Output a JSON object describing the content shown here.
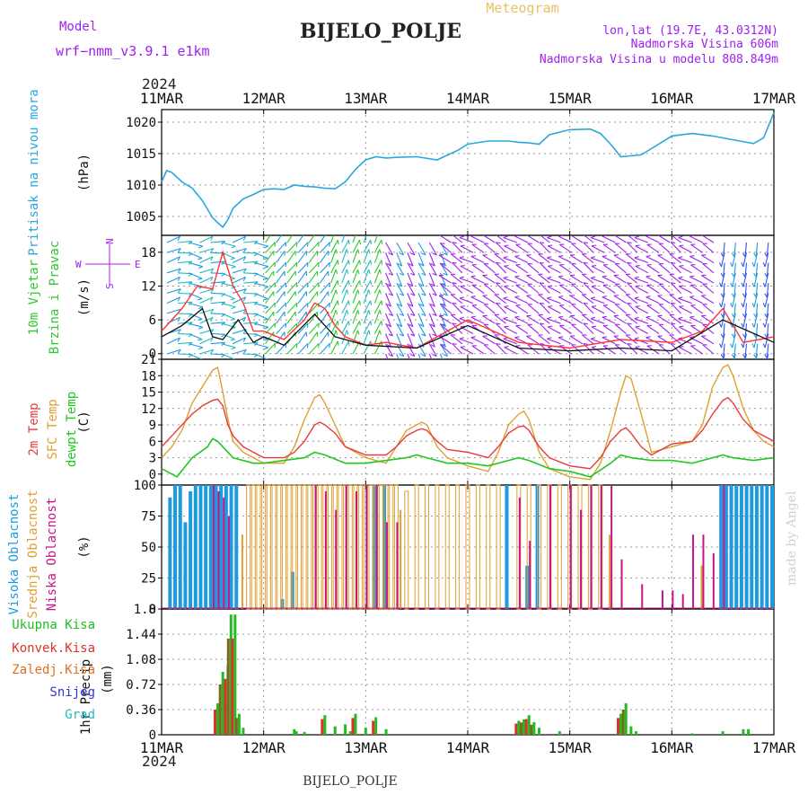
{
  "header": {
    "model_label": "Model",
    "model_name": "wrf−nmm_v3.9.1  e1km",
    "title": "BIJELO_POLJE",
    "subtitle": "Meteogram",
    "lonlat": "lon,lat (19.7E, 43.0312N)",
    "elevation": "Nadmorska Visina 606m",
    "model_elevation": "Nadmorska Visina u modelu 808.849m",
    "year_top": "2024",
    "year_bottom": "2024",
    "footer_station": "BIJELO_POLJE",
    "credit": "made by Angel"
  },
  "colors": {
    "pressure": "#29a8e0",
    "wind_green": "#2ec82e",
    "wind_purple": "#a020f0",
    "temp2m": "#e83c3c",
    "sfc": "#e0a030",
    "dew": "#20c820",
    "high_cloud": "#1e9be0",
    "mid_cloud": "#e0a030",
    "low_cloud": "#c71585",
    "precip_total": "#22bb22",
    "precip_conv": "#e0302c",
    "precip_frozen": "#e07020",
    "snow": "#3333dd",
    "grad": "#22bbbb",
    "compass": "#a020f0"
  },
  "chart_data": [
    {
      "type": "line",
      "id": "pressure",
      "ylabel_lines": [
        "Pritisak na nivou mora"
      ],
      "unit": "(hPa)",
      "ylim": [
        1002,
        1022
      ],
      "yticks": [
        1005,
        1010,
        1015,
        1020
      ],
      "xticks": [
        "11MAR",
        "12MAR",
        "13MAR",
        "14MAR",
        "15MAR",
        "16MAR",
        "17MAR"
      ],
      "series": [
        {
          "x": [
            0,
            0.05,
            0.1,
            0.2,
            0.3,
            0.4,
            0.5,
            0.55,
            0.6,
            0.65,
            0.7,
            0.8,
            0.9,
            1.0,
            1.1,
            1.2,
            1.3,
            1.4,
            1.5,
            1.6,
            1.7,
            1.8,
            1.9,
            2.0,
            2.1,
            2.2,
            2.3,
            2.5,
            2.7,
            2.9,
            3.0,
            3.2,
            3.4,
            3.5,
            3.6,
            3.7,
            3.8,
            4.0,
            4.2,
            4.3,
            4.4,
            4.5,
            4.7,
            4.9,
            5.0,
            5.2,
            5.4,
            5.6,
            5.8,
            5.9,
            6.0
          ],
          "values": [
            1010.5,
            1012.3,
            1012.0,
            1010.5,
            1009.5,
            1007.5,
            1004.8,
            1004.0,
            1003.3,
            1004.5,
            1006.3,
            1007.8,
            1008.5,
            1009.3,
            1009.4,
            1009.3,
            1010.0,
            1009.8,
            1009.7,
            1009.5,
            1009.4,
            1010.5,
            1012.5,
            1014.0,
            1014.5,
            1014.3,
            1014.4,
            1014.5,
            1014.0,
            1015.5,
            1016.5,
            1017.0,
            1017.0,
            1016.8,
            1016.7,
            1016.5,
            1018.0,
            1018.8,
            1018.9,
            1018.2,
            1016.5,
            1014.5,
            1014.8,
            1016.8,
            1017.8,
            1018.2,
            1017.8,
            1017.2,
            1016.6,
            1017.5,
            1021.5
          ]
        }
      ]
    },
    {
      "type": "line",
      "id": "wind",
      "ylabel_lines": [
        "10m Vjetar",
        "Brzina i Pravac"
      ],
      "unit": "(m/s)",
      "ylim": [
        -1,
        21
      ],
      "yticks": [
        0,
        6,
        12,
        18
      ],
      "compass": {
        "n": "N",
        "s": "S",
        "w": "W",
        "e": "E"
      },
      "series": [
        {
          "name": "speed",
          "x": [
            0,
            0.2,
            0.35,
            0.5,
            0.6,
            0.7,
            0.8,
            0.9,
            1.0,
            1.2,
            1.4,
            1.5,
            1.6,
            1.7,
            1.8,
            2.0,
            2.2,
            2.5,
            3.0,
            3.5,
            4.0,
            4.5,
            5.0,
            5.3,
            5.5,
            5.7,
            6.0
          ],
          "values": [
            4.0,
            8.0,
            12.0,
            11.5,
            18.0,
            12.0,
            9.0,
            4.0,
            4.0,
            2.5,
            6.0,
            9.0,
            8.0,
            5.0,
            3.0,
            1.5,
            2.0,
            1.0,
            6.0,
            2.0,
            1.0,
            2.5,
            2.0,
            4.0,
            8.0,
            2.0,
            3.0
          ]
        },
        {
          "name": "gust",
          "x": [
            0,
            0.2,
            0.4,
            0.5,
            0.6,
            0.75,
            0.9,
            1.0,
            1.2,
            1.5,
            1.7,
            2.0,
            2.5,
            3.0,
            3.5,
            4.0,
            4.5,
            5.0,
            5.5,
            6.0
          ],
          "values": [
            3.0,
            5.0,
            8.0,
            3.0,
            2.5,
            6.0,
            2.0,
            3.0,
            1.5,
            7.0,
            3.0,
            1.5,
            1.0,
            5.0,
            1.0,
            0.5,
            1.0,
            0.5,
            6.0,
            2.0
          ]
        }
      ]
    },
    {
      "type": "line",
      "id": "temperature",
      "ylabel_lines": [
        "2m Temp",
        "SFC Temp",
        "dewpt Temp"
      ],
      "unit": "(C)",
      "ylim": [
        -2,
        21
      ],
      "yticks": [
        0,
        3,
        6,
        9,
        12,
        15,
        18,
        21
      ],
      "series": [
        {
          "name": "2m Temp",
          "x": [
            0,
            0.1,
            0.2,
            0.3,
            0.4,
            0.5,
            0.55,
            0.6,
            0.65,
            0.7,
            0.8,
            0.9,
            1.0,
            1.2,
            1.3,
            1.4,
            1.5,
            1.55,
            1.6,
            1.7,
            1.8,
            2.0,
            2.2,
            2.3,
            2.4,
            2.5,
            2.55,
            2.6,
            2.7,
            2.8,
            3.0,
            3.2,
            3.3,
            3.4,
            3.5,
            3.55,
            3.6,
            3.7,
            3.8,
            4.0,
            4.2,
            4.3,
            4.4,
            4.5,
            4.55,
            4.6,
            4.7,
            4.8,
            5.0,
            5.2,
            5.3,
            5.4,
            5.5,
            5.55,
            5.6,
            5.7,
            5.8,
            5.9,
            6.0
          ],
          "values": [
            5.0,
            7.0,
            9.0,
            11.0,
            12.5,
            13.5,
            13.7,
            12.5,
            9.0,
            7.0,
            5.0,
            4.0,
            3.0,
            3.0,
            4.0,
            6.0,
            9.0,
            9.5,
            9.0,
            7.5,
            5.0,
            3.5,
            3.5,
            5.0,
            7.0,
            8.0,
            8.3,
            8.0,
            6.0,
            4.5,
            4.0,
            3.0,
            5.0,
            7.5,
            8.7,
            8.8,
            8.0,
            5.0,
            3.0,
            1.5,
            1.0,
            3.0,
            6.0,
            8.0,
            8.5,
            7.5,
            5.0,
            3.5,
            5.5,
            6.0,
            8.0,
            11.0,
            13.5,
            14.0,
            13.0,
            10.0,
            8.0,
            7.0,
            6.0
          ]
        },
        {
          "name": "SFC Temp",
          "x": [
            0,
            0.1,
            0.2,
            0.3,
            0.4,
            0.5,
            0.55,
            0.6,
            0.65,
            0.7,
            0.8,
            0.9,
            1.0,
            1.2,
            1.3,
            1.4,
            1.5,
            1.55,
            1.6,
            1.7,
            1.8,
            2.0,
            2.2,
            2.3,
            2.4,
            2.5,
            2.55,
            2.6,
            2.7,
            2.8,
            3.0,
            3.2,
            3.3,
            3.4,
            3.5,
            3.55,
            3.6,
            3.7,
            3.8,
            4.0,
            4.2,
            4.3,
            4.4,
            4.5,
            4.55,
            4.6,
            4.7,
            4.8,
            5.0,
            5.2,
            5.3,
            5.4,
            5.5,
            5.55,
            5.6,
            5.7,
            5.8,
            5.9,
            6.0
          ],
          "values": [
            3.0,
            5.0,
            8.0,
            13.0,
            16.0,
            19.0,
            19.5,
            15.0,
            10.0,
            6.0,
            4.0,
            3.0,
            2.0,
            2.0,
            5.0,
            10.0,
            14.0,
            14.5,
            13.0,
            9.0,
            5.0,
            3.0,
            2.0,
            5.0,
            8.0,
            9.0,
            9.5,
            9.0,
            5.0,
            3.0,
            1.5,
            0.5,
            4.0,
            9.0,
            11.0,
            11.5,
            10.0,
            4.0,
            1.0,
            -0.5,
            -1.0,
            2.0,
            8.0,
            15.0,
            18.0,
            17.5,
            11.0,
            4.0,
            5.0,
            6.0,
            9.0,
            16.0,
            19.5,
            20.0,
            18.0,
            12.0,
            8.0,
            6.0,
            5.0
          ]
        },
        {
          "name": "dewpt Temp",
          "x": [
            0,
            0.15,
            0.3,
            0.45,
            0.5,
            0.55,
            0.7,
            0.9,
            1.0,
            1.2,
            1.4,
            1.5,
            1.6,
            1.8,
            2.0,
            2.2,
            2.4,
            2.5,
            2.6,
            2.8,
            3.0,
            3.2,
            3.4,
            3.5,
            3.6,
            3.8,
            4.0,
            4.2,
            4.4,
            4.5,
            4.6,
            4.8,
            5.0,
            5.2,
            5.4,
            5.5,
            5.6,
            5.8,
            6.0
          ],
          "values": [
            1.0,
            -0.5,
            3.0,
            5.0,
            6.5,
            6.0,
            3.0,
            2.0,
            2.0,
            2.5,
            3.0,
            4.0,
            3.5,
            2.0,
            2.0,
            2.5,
            3.0,
            3.5,
            3.0,
            2.0,
            2.0,
            1.5,
            2.5,
            3.0,
            2.5,
            1.0,
            0.5,
            -0.5,
            2.0,
            3.5,
            3.0,
            2.5,
            2.5,
            2.0,
            3.0,
            3.5,
            3.0,
            2.5,
            3.0
          ]
        }
      ]
    },
    {
      "type": "bar",
      "id": "clouds",
      "ylabel_lines": [
        "Visoka Oblacnost",
        "Srednja Oblacnost",
        "Niska Oblacnost"
      ],
      "unit": "(%)",
      "ylim": [
        0,
        100
      ],
      "yticks": [
        0,
        25,
        50,
        75,
        100
      ],
      "series": [
        {
          "name": "Visoka Oblacnost",
          "x": [
            0.1,
            0.15,
            0.2,
            0.25,
            0.3,
            0.35,
            0.4,
            0.45,
            0.5,
            0.55,
            0.6,
            0.65,
            0.7,
            0.75,
            1.2,
            1.3,
            2.1,
            2.2,
            3.4,
            3.6,
            3.7,
            5.5,
            5.55,
            5.6,
            5.65,
            5.7,
            5.75,
            5.8,
            5.85,
            5.9,
            5.95,
            6.0
          ],
          "values": [
            90,
            100,
            100,
            70,
            95,
            100,
            100,
            100,
            100,
            100,
            100,
            100,
            100,
            100,
            8,
            30,
            100,
            100,
            100,
            35,
            100,
            100,
            100,
            100,
            100,
            100,
            100,
            100,
            100,
            100,
            100,
            100
          ]
        },
        {
          "name": "Srednja Oblacnost",
          "x": [
            0.8,
            0.85,
            0.9,
            0.95,
            1.0,
            1.05,
            1.1,
            1.15,
            1.2,
            1.25,
            1.3,
            1.35,
            1.4,
            1.45,
            1.5,
            1.55,
            1.6,
            1.65,
            1.7,
            1.75,
            1.8,
            1.85,
            1.9,
            1.95,
            2.0,
            2.05,
            2.1,
            2.15,
            2.2,
            2.25,
            2.3,
            2.35,
            2.4,
            2.5,
            2.6,
            2.7,
            2.8,
            2.9,
            3.0,
            3.1,
            3.2,
            3.3,
            3.5,
            3.6,
            3.7,
            3.8,
            3.9,
            4.0,
            4.1,
            4.2,
            4.3,
            4.4,
            5.3
          ],
          "values": [
            60,
            100,
            100,
            100,
            100,
            100,
            100,
            100,
            100,
            100,
            100,
            100,
            100,
            100,
            100,
            100,
            100,
            100,
            100,
            100,
            100,
            100,
            100,
            100,
            100,
            100,
            100,
            100,
            100,
            100,
            100,
            80,
            95,
            100,
            100,
            100,
            100,
            100,
            100,
            100,
            100,
            100,
            100,
            100,
            100,
            100,
            100,
            100,
            100,
            100,
            100,
            60,
            35
          ]
        },
        {
          "name": "Niska Oblacnost",
          "x": [
            0.5,
            0.55,
            0.6,
            0.65,
            1.5,
            1.6,
            1.7,
            1.8,
            1.9,
            2.0,
            2.1,
            2.2,
            2.3,
            3.5,
            3.6,
            3.8,
            4.0,
            4.1,
            4.2,
            4.3,
            4.4,
            4.5,
            4.7,
            4.9,
            5.0,
            5.1,
            5.2,
            5.3,
            5.4,
            5.5
          ],
          "values": [
            100,
            95,
            90,
            75,
            100,
            95,
            80,
            100,
            95,
            100,
            100,
            70,
            70,
            90,
            55,
            100,
            100,
            80,
            100,
            100,
            100,
            40,
            20,
            15,
            15,
            12,
            60,
            60,
            45,
            100
          ]
        }
      ]
    },
    {
      "type": "bar",
      "id": "precip",
      "ylabel_lines": [
        "1hr Precip"
      ],
      "unit": "(mm)",
      "ylim": [
        0,
        1.8
      ],
      "yticks": [
        0,
        0.36,
        0.72,
        1.08,
        1.44,
        1.8
      ],
      "series": [
        {
          "name": "Ukupna Kisa",
          "x": [
            0.55,
            0.6,
            0.65,
            0.68,
            0.72,
            0.76,
            0.8,
            1.3,
            1.32,
            1.4,
            1.6,
            1.7,
            1.8,
            1.85,
            1.9,
            2.0,
            2.1,
            2.2,
            3.5,
            3.55,
            3.6,
            3.65,
            3.7,
            3.9,
            4.5,
            4.55,
            4.6,
            4.65,
            5.2,
            5.5,
            5.7,
            5.75
          ],
          "values": [
            0.45,
            0.9,
            1.0,
            1.72,
            1.72,
            0.3,
            0.1,
            0.08,
            0.05,
            0.04,
            0.28,
            0.12,
            0.15,
            0.05,
            0.3,
            0.1,
            0.25,
            0.08,
            0.2,
            0.22,
            0.28,
            0.18,
            0.1,
            0.05,
            0.3,
            0.45,
            0.12,
            0.05,
            0.02,
            0.05,
            0.08,
            0.08
          ]
        }
      ]
    }
  ],
  "legend": {
    "precip_total": "Ukupna Kisa",
    "precip_conv": "Konvek.Kisa",
    "precip_frozen": "Zaledj.Kisa",
    "snow": "Snijeg",
    "grad": "Grad"
  }
}
